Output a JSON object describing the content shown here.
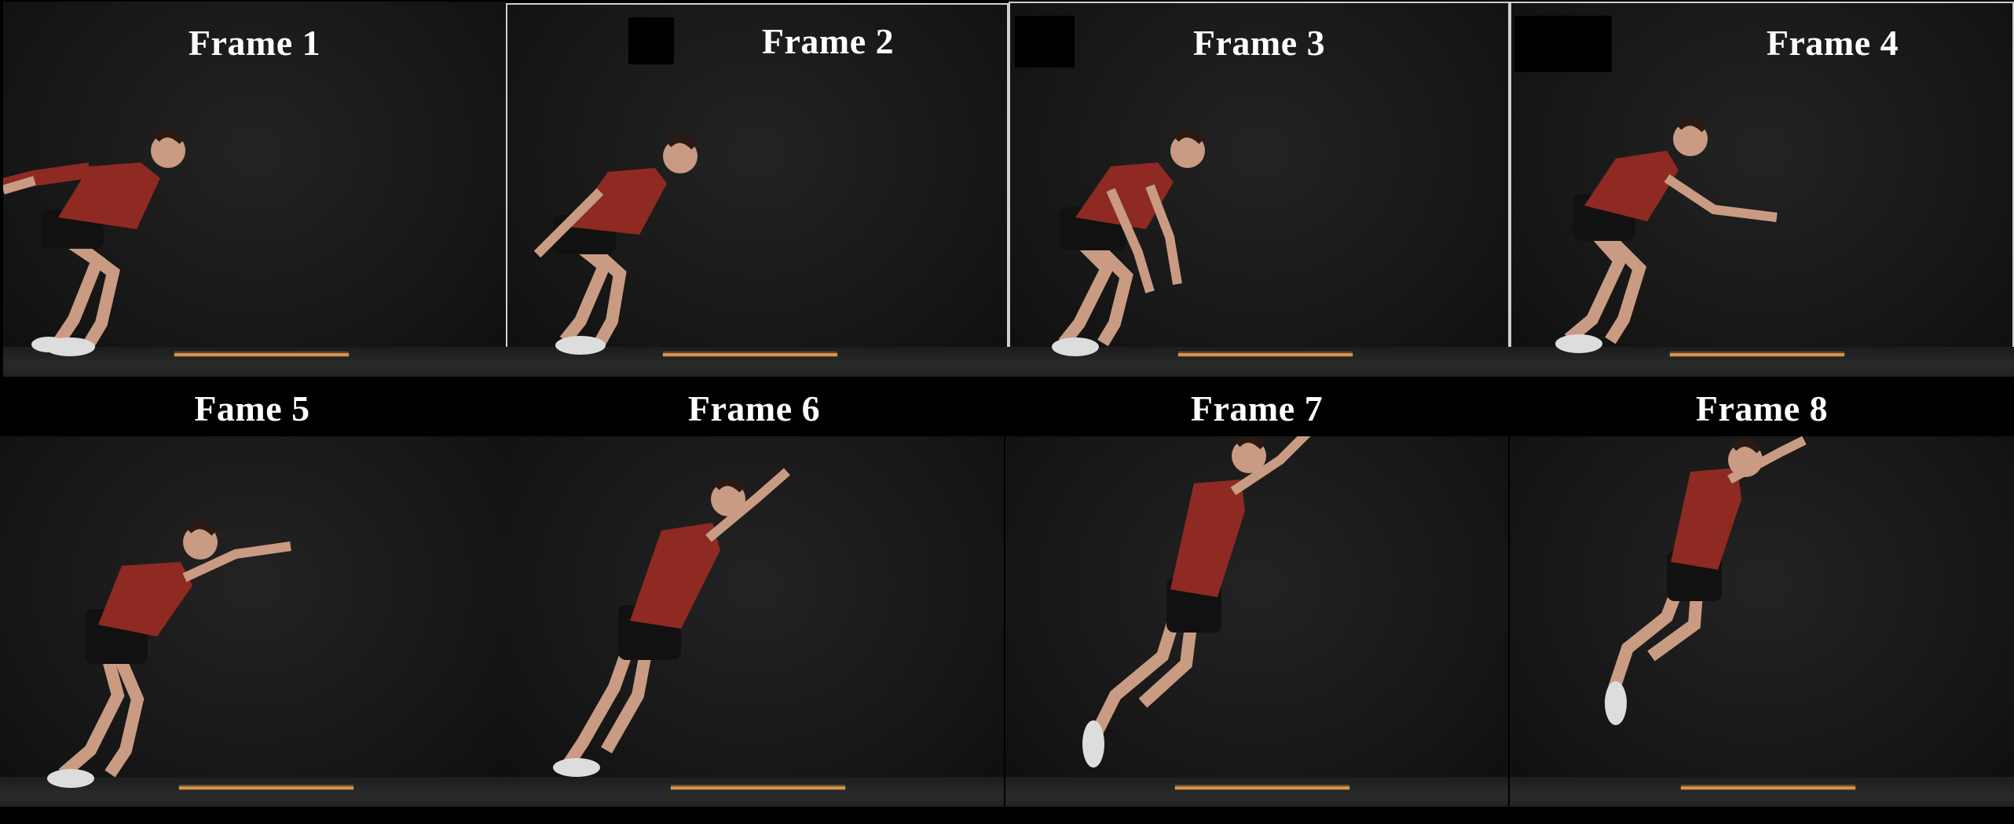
{
  "frames": [
    {
      "label": "Frame 1",
      "pose": "crouch-arms-back"
    },
    {
      "label": "Frame 2",
      "pose": "crouch-arms-down"
    },
    {
      "label": "Frame 3",
      "pose": "crouch-arms-low"
    },
    {
      "label": "Frame 4",
      "pose": "arms-forward"
    },
    {
      "label": "Fame 5",
      "pose": "extend-arms-forward"
    },
    {
      "label": "Frame 6",
      "pose": "takeoff"
    },
    {
      "label": "Frame 7",
      "pose": "flight-early"
    },
    {
      "label": "Frame 8",
      "pose": "flight-late"
    }
  ],
  "colors": {
    "shirt": "#8e2a22",
    "shorts": "#111111",
    "skin": "#c99b82",
    "tape": "#d8924a"
  }
}
